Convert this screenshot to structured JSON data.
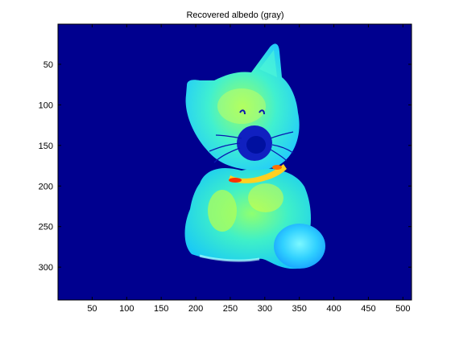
{
  "chart_data": {
    "type": "heatmap",
    "title": "Recovered albedo (gray)",
    "xlabel": "",
    "ylabel": "",
    "xlim": [
      0.5,
      512.5
    ],
    "ylim": [
      0.5,
      340.5
    ],
    "y_reversed": true,
    "xticks": [
      50,
      100,
      150,
      200,
      250,
      300,
      350,
      400,
      450,
      500
    ],
    "yticks": [
      50,
      100,
      150,
      200,
      250,
      300
    ],
    "colormap": "jet",
    "background_color": "#00008f",
    "subject": "cat figurine",
    "grid": false,
    "legend": "none"
  }
}
